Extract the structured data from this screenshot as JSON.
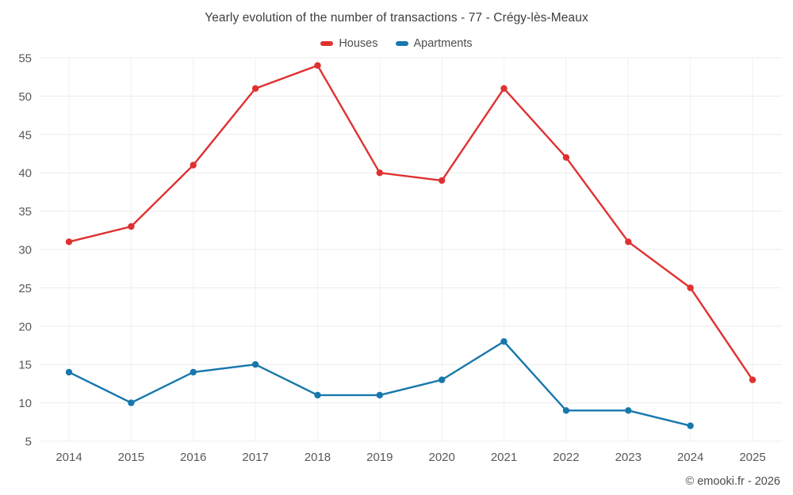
{
  "header": {
    "title": "Yearly evolution of the number of transactions - 77 - Crégy-lès-Meaux"
  },
  "footer": {
    "copyright": "© emooki.fr - 2026"
  },
  "chart_data": {
    "type": "line",
    "title": "Yearly evolution of the number of transactions - 77 - Crégy-lès-Meaux",
    "x": [
      2014,
      2015,
      2016,
      2017,
      2018,
      2019,
      2020,
      2021,
      2022,
      2023,
      2024,
      2025
    ],
    "series": [
      {
        "name": "Houses",
        "color": "#e03131",
        "values": [
          31,
          33,
          41,
          51,
          54,
          40,
          39,
          51,
          42,
          31,
          25,
          13
        ]
      },
      {
        "name": "Apartments",
        "color": "#1878ad",
        "values": [
          14,
          10,
          14,
          15,
          11,
          11,
          13,
          18,
          9,
          9,
          7,
          null
        ]
      }
    ],
    "xlabel": "",
    "ylabel": "",
    "ylim": [
      5,
      55
    ],
    "yticks": [
      5,
      10,
      15,
      20,
      25,
      30,
      35,
      40,
      45,
      50,
      55
    ],
    "grid": true,
    "grid_color": "#ececec",
    "legend_position": "top"
  }
}
